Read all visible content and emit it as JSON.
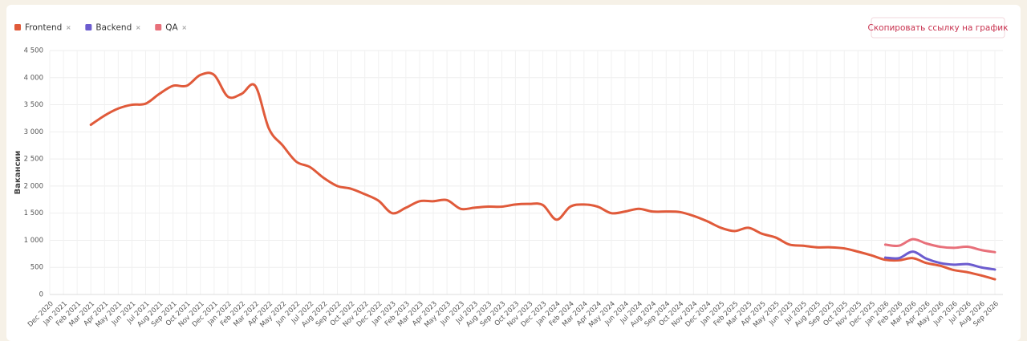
{
  "toolbar": {
    "copy_link": "Скопировать ссылку на график"
  },
  "chart_data": {
    "type": "line",
    "y_label": "Вакансии",
    "categories": [
      "Dec 2020",
      "Jan 2021",
      "Feb 2021",
      "Mar 2021",
      "Apr 2021",
      "May 2021",
      "Jun 2021",
      "Jul 2021",
      "Aug 2021",
      "Sep 2021",
      "Oct 2021",
      "Nov 2021",
      "Dec 2021",
      "Jan 2022",
      "Feb 2022",
      "Mar 2022",
      "Apr 2022",
      "May 2022",
      "Jun 2022",
      "Jul 2022",
      "Aug 2022",
      "Sep 2022",
      "Oct 2022",
      "Nov 2022",
      "Dec 2022",
      "Jan 2023",
      "Feb 2023",
      "Mar 2023",
      "Apr 2023",
      "May 2023",
      "Jun 2023",
      "Jul 2023",
      "Aug 2023",
      "Sep 2023",
      "Oct 2023",
      "Nov 2023",
      "Dec 2023",
      "Jan 2024",
      "Feb 2024",
      "Mar 2024",
      "Apr 2024",
      "May 2024",
      "Jun 2024",
      "Jul 2024",
      "Aug 2024",
      "Sep 2024",
      "Oct 2024",
      "Nov 2024",
      "Dec 2024",
      "Jan 2025",
      "Feb 2025",
      "Mar 2025",
      "Apr 2025",
      "May 2025",
      "Jun 2025",
      "Jul 2025",
      "Aug 2025",
      "Sep 2025",
      "Oct 2025",
      "Nov 2025",
      "Dec 2025",
      "Jan 2026",
      "Feb 2026",
      "Mar 2026",
      "Apr 2026",
      "May 2026",
      "Jun 2026",
      "Jul 2026",
      "Aug 2026",
      "Sep 2026"
    ],
    "series": [
      {
        "name": "Frontend",
        "color": "#e05a3a",
        "values": [
          null,
          null,
          null,
          3130,
          3300,
          3430,
          3500,
          3520,
          3700,
          3850,
          3850,
          4050,
          4050,
          3650,
          3700,
          3850,
          3060,
          2750,
          2450,
          2350,
          2150,
          2000,
          1950,
          1850,
          1730,
          1500,
          1600,
          1720,
          1720,
          1740,
          1580,
          1600,
          1620,
          1620,
          1660,
          1670,
          1650,
          1380,
          1620,
          1660,
          1620,
          1500,
          1530,
          1580,
          1530,
          1530,
          1520,
          1450,
          1350,
          1230,
          1170,
          1230,
          1120,
          1050,
          920,
          900,
          870,
          870,
          850,
          790,
          720,
          640,
          630,
          670,
          580,
          530,
          450,
          410,
          350,
          280
        ]
      },
      {
        "name": "Backend",
        "color": "#6c5ccf",
        "values": [
          null,
          null,
          null,
          null,
          null,
          null,
          null,
          null,
          null,
          null,
          null,
          null,
          null,
          null,
          null,
          null,
          null,
          null,
          null,
          null,
          null,
          null,
          null,
          null,
          null,
          null,
          null,
          null,
          null,
          null,
          null,
          null,
          null,
          null,
          null,
          null,
          null,
          null,
          null,
          null,
          null,
          null,
          null,
          null,
          null,
          null,
          null,
          null,
          null,
          null,
          null,
          null,
          null,
          null,
          null,
          null,
          null,
          null,
          null,
          null,
          null,
          680,
          670,
          790,
          660,
          580,
          550,
          560,
          500,
          460
        ]
      },
      {
        "name": "QA",
        "color": "#e8707a",
        "values": [
          null,
          null,
          null,
          null,
          null,
          null,
          null,
          null,
          null,
          null,
          null,
          null,
          null,
          null,
          null,
          null,
          null,
          null,
          null,
          null,
          null,
          null,
          null,
          null,
          null,
          null,
          null,
          null,
          null,
          null,
          null,
          null,
          null,
          null,
          null,
          null,
          null,
          null,
          null,
          null,
          null,
          null,
          null,
          null,
          null,
          null,
          null,
          null,
          null,
          null,
          null,
          null,
          null,
          null,
          null,
          null,
          null,
          null,
          null,
          null,
          null,
          920,
          900,
          1020,
          940,
          880,
          860,
          880,
          820,
          780
        ]
      }
    ],
    "ylim": [
      0,
      4500
    ],
    "yticks": [
      0,
      500,
      {
        "value": 1000,
        "label": "1 000"
      },
      {
        "value": 1500,
        "label": "1 500"
      },
      {
        "value": 2000,
        "label": "2 000"
      },
      {
        "value": 2500,
        "label": "2 500"
      },
      {
        "value": 3000,
        "label": "3 000"
      },
      {
        "value": 3500,
        "label": "3 500"
      },
      {
        "value": 4000,
        "label": "4 000"
      },
      {
        "value": 4500,
        "label": "4 500"
      }
    ],
    "grid": true
  }
}
